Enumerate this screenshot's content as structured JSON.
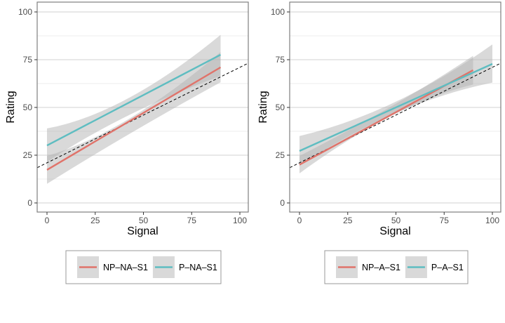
{
  "chart_data": [
    {
      "type": "line",
      "panel": "left",
      "title": "",
      "xlabel": "Signal",
      "ylabel": "Rating",
      "xlim": [
        -5,
        105
      ],
      "ylim": [
        -5,
        105
      ],
      "xticks": [
        0,
        25,
        50,
        75,
        100
      ],
      "yticks": [
        0,
        25,
        50,
        75,
        100
      ],
      "xtick_labels": [
        "0",
        "25",
        "50",
        "75",
        "100"
      ],
      "ytick_labels": [
        "0",
        "25",
        "50",
        "75",
        "100"
      ],
      "grid": true,
      "reference_line": {
        "style": "dashed",
        "intercept": 21,
        "slope": 0.5
      },
      "legend_position": "bottom",
      "series": [
        {
          "name": "NP–NA–S1",
          "color": "#E0736A",
          "x": [
            0,
            90
          ],
          "y": [
            17.3,
            71
          ],
          "ci_lower": [
            10,
            63.2
          ],
          "ci_upper": [
            24.6,
            79
          ],
          "ci_mid_x": 40,
          "ci_mid_lower": 36,
          "ci_mid_upper": 44
        },
        {
          "name": "P–NA–S1",
          "color": "#5EBDC1",
          "x": [
            0,
            90
          ],
          "y": [
            30.1,
            77.6
          ],
          "ci_lower": [
            21.5,
            66.5
          ],
          "ci_upper": [
            39,
            88
          ],
          "ci_mid_x": 40,
          "ci_mid_lower": 46,
          "ci_mid_upper": 55
        }
      ]
    },
    {
      "type": "line",
      "panel": "right",
      "title": "",
      "xlabel": "Signal",
      "ylabel": "Rating",
      "xlim": [
        -5,
        105
      ],
      "ylim": [
        -5,
        105
      ],
      "xticks": [
        0,
        25,
        50,
        75,
        100
      ],
      "yticks": [
        0,
        25,
        50,
        75,
        100
      ],
      "xtick_labels": [
        "0",
        "25",
        "50",
        "75",
        "100"
      ],
      "ytick_labels": [
        "0",
        "25",
        "50",
        "75",
        "100"
      ],
      "grid": true,
      "reference_line": {
        "style": "dashed",
        "intercept": 21,
        "slope": 0.5
      },
      "legend_position": "bottom",
      "series": [
        {
          "name": "NP–A–S1",
          "color": "#E0736A",
          "x": [
            0,
            90
          ],
          "y": [
            20,
            69.5
          ],
          "ci_lower": [
            15.5,
            62
          ],
          "ci_upper": [
            24.6,
            77
          ],
          "ci_mid_x": 50,
          "ci_mid_lower": 45.5,
          "ci_mid_upper": 50.5
        },
        {
          "name": "P–A–S1",
          "color": "#5EBDC1",
          "x": [
            0,
            100
          ],
          "y": [
            27.2,
            72.8
          ],
          "ci_lower": [
            19.5,
            63
          ],
          "ci_upper": [
            35,
            83
          ],
          "ci_mid_x": 50,
          "ci_mid_lower": 47,
          "ci_mid_upper": 53
        }
      ]
    }
  ],
  "colors": {
    "panel_border": "#7f7f7f",
    "grid_major": "#d9d9d9",
    "grid_minor": "#ececec",
    "ribbon": "#b3b3b3",
    "legend_key_bg": "#d9d9d9"
  }
}
